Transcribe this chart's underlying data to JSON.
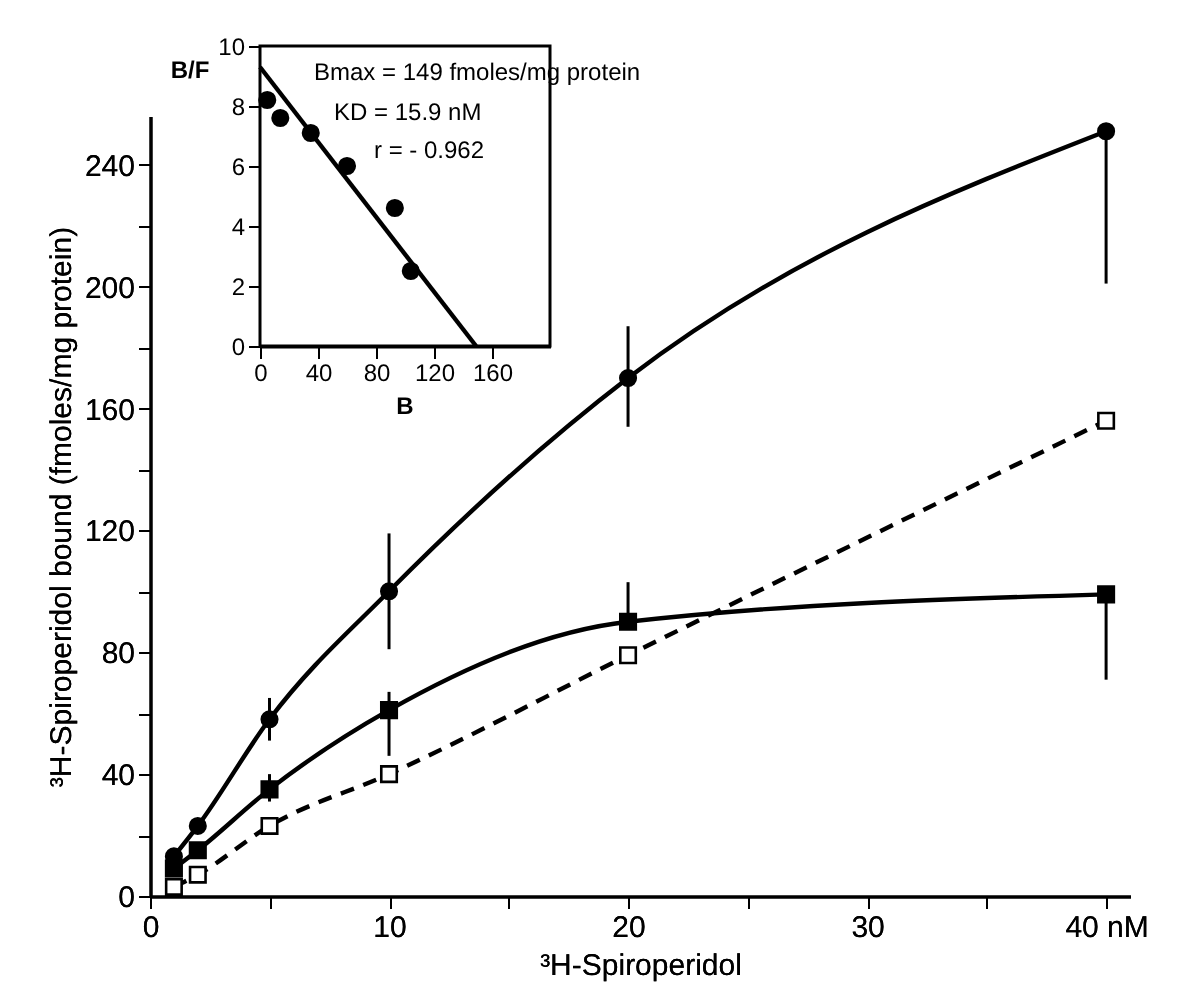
{
  "chart_data": [
    {
      "type": "line",
      "xlabel": "³H-Spiroperidol",
      "ylabel": "³H-Spiroperidol bound (fmoles/mg protein)",
      "x": [
        1,
        2,
        5,
        10,
        20,
        40
      ],
      "xlim": [
        0,
        41
      ],
      "xticks": [
        0,
        {
          "value": 5,
          "label": null
        },
        10,
        {
          "value": 15,
          "label": null
        },
        20,
        {
          "value": 25,
          "label": null
        },
        30,
        {
          "value": 35,
          "label": null
        },
        {
          "value": 40,
          "label": "40 nM"
        }
      ],
      "ylim": [
        0,
        256
      ],
      "yticks": [
        0,
        {
          "value": 20,
          "label": null
        },
        40,
        {
          "value": 60,
          "label": null
        },
        80,
        {
          "value": 100,
          "label": null
        },
        120,
        {
          "value": 140,
          "label": null
        },
        160,
        {
          "value": 180,
          "label": null
        },
        200,
        {
          "value": 220,
          "label": null
        },
        240
      ],
      "grid": false,
      "series": [
        {
          "color": "#000000",
          "marker": "circle",
          "line_style": "solid",
          "values": [
            13,
            23,
            58,
            100,
            170,
            251
          ],
          "errors": [
            null,
            null,
            [
              51,
              65
            ],
            [
              81,
              119
            ],
            [
              154,
              187
            ],
            [
              201,
              251
            ]
          ]
        },
        {
          "color": "#000000",
          "marker": "square",
          "line_style": "solid",
          "values": [
            9,
            15,
            35,
            61,
            90,
            99
          ],
          "errors": [
            null,
            null,
            [
              31,
              40
            ],
            [
              46,
              67
            ],
            [
              90,
              103
            ],
            [
              71,
              99
            ]
          ]
        },
        {
          "color": "#000000",
          "marker": "square",
          "line_style": "dashed",
          "values": [
            3,
            7,
            23,
            40,
            79,
            156
          ]
        }
      ]
    },
    {
      "type": "scatter",
      "xlabel": "B",
      "ylabel": "B/F",
      "xlim": [
        0,
        200
      ],
      "xticks": [
        0,
        40,
        80,
        120,
        160
      ],
      "ylim": [
        0,
        10
      ],
      "yticks": [
        0,
        2,
        4,
        6,
        8,
        10
      ],
      "grid": false,
      "annotations": [
        "Bmax = 149 fmoles/mg protein",
        "KD = 15.9 nM",
        "r = - 0.962"
      ],
      "series": [
        {
          "color": "#000000",
          "marker": "circle",
          "x": [
            5,
            14,
            35,
            60,
            93,
            104
          ],
          "values": [
            8.2,
            7.6,
            7.1,
            6.0,
            4.6,
            2.5
          ]
        },
        {
          "type": "line",
          "color": "#000000",
          "marker": "none",
          "x": [
            0,
            149
          ],
          "values": [
            9.3,
            0
          ]
        }
      ]
    }
  ]
}
